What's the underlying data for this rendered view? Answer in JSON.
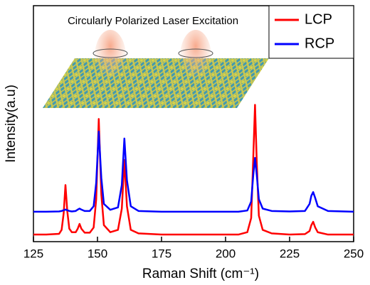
{
  "chart_data": {
    "type": "line",
    "annotation": "Circularly Polarized Laser Excitation",
    "x_label": "Raman Shift (cm⁻¹)",
    "y_label": "Intensity(a.u)",
    "x": [
      125,
      130,
      135,
      136,
      136.8,
      137.5,
      138.2,
      139,
      140,
      141.5,
      142.3,
      143,
      143.7,
      145,
      147,
      148.5,
      149.5,
      150.5,
      151.5,
      152.5,
      155,
      158,
      159.5,
      160.5,
      161.5,
      163,
      166,
      175,
      190,
      205,
      208.5,
      210,
      210.8,
      211.5,
      212.2,
      213,
      214.5,
      218,
      225,
      231,
      232.8,
      233.5,
      234.2,
      235,
      236,
      240,
      250
    ],
    "series": [
      {
        "name": "LCP",
        "color": "#ff0000",
        "values": [
          3,
          3,
          3.3,
          5,
          12,
          24,
          13,
          5.5,
          4,
          4,
          5.5,
          7.5,
          5.5,
          3.8,
          3.8,
          6,
          18,
          52,
          20,
          7,
          4,
          5,
          14,
          34.6,
          15,
          5,
          3.5,
          3,
          3,
          3,
          4,
          10,
          35,
          58,
          33,
          11,
          5,
          3.5,
          3,
          3.2,
          4.5,
          7,
          8.4,
          6,
          4,
          3,
          3
        ]
      },
      {
        "name": "RCP",
        "color": "#0000ff",
        "values": [
          12.7,
          12.7,
          12.8,
          13,
          13.3,
          13.6,
          13.3,
          13,
          12.8,
          13,
          13.6,
          14,
          13.6,
          13,
          13,
          15,
          25,
          46.7,
          27,
          16,
          13.5,
          14.5,
          24,
          43.7,
          26,
          15,
          13,
          12.7,
          12.7,
          12.7,
          13.2,
          17,
          28,
          35.5,
          28,
          18,
          14,
          13,
          12.8,
          13,
          16,
          19.5,
          21,
          18.5,
          15,
          13,
          12.7
        ]
      }
    ],
    "xlim": [
      125,
      250
    ],
    "xticks": [
      125,
      150,
      175,
      200,
      225,
      250
    ],
    "ylim": [
      0,
      100
    ],
    "legend": "top-right"
  }
}
